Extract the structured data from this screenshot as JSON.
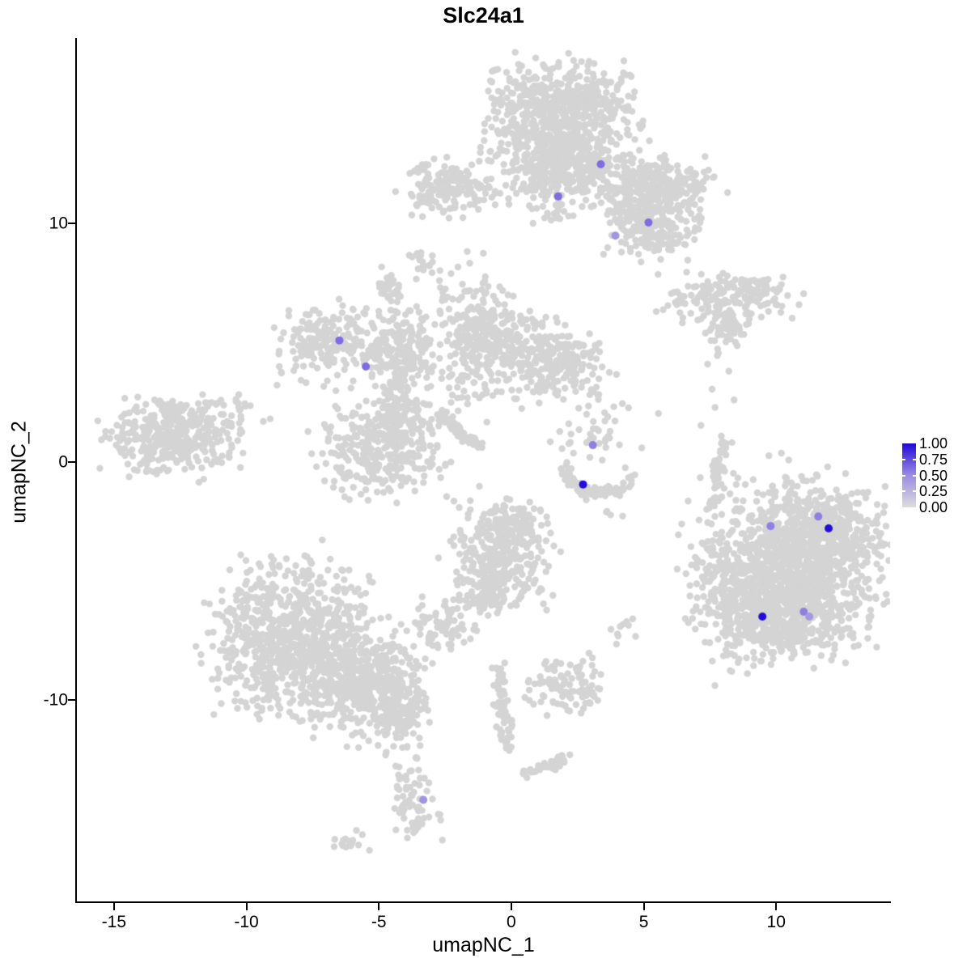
{
  "title": "Slc24a1",
  "axes": {
    "x_label": "umapNC_1",
    "y_label": "umapNC_2",
    "x_ticks": [
      {
        "label": "-15",
        "value": -15
      },
      {
        "label": "-10",
        "value": -10
      },
      {
        "label": "-5",
        "value": -5
      },
      {
        "label": "0",
        "value": 0
      },
      {
        "label": "5",
        "value": 5
      },
      {
        "label": "10",
        "value": 10
      }
    ],
    "y_ticks": [
      {
        "label": "-10",
        "value": -10
      },
      {
        "label": "0",
        "value": 0
      },
      {
        "label": "10",
        "value": 10
      }
    ]
  },
  "legend": {
    "labels": [
      {
        "label": "1.00",
        "value": 1.0
      },
      {
        "label": "0.75",
        "value": 0.75
      },
      {
        "label": "0.50",
        "value": 0.5
      },
      {
        "label": "0.25",
        "value": 0.25
      },
      {
        "label": "0.00",
        "value": 0.0
      }
    ],
    "gradient_stops": [
      [
        0,
        "#DCDCDC"
      ],
      [
        0.5,
        "#9C8CE4"
      ],
      [
        1,
        "#2008D8"
      ]
    ]
  },
  "colors": {
    "base_point": "#D4D4D4",
    "axis": "#000000",
    "background": "#FFFFFF"
  },
  "chart_data": {
    "type": "scatter",
    "title": "Slc24a1",
    "xlabel": "umapNC_1",
    "ylabel": "umapNC_2",
    "xlim": [
      -16.4,
      14.3
    ],
    "ylim": [
      -18.5,
      17.8
    ],
    "grid": false,
    "legend_position": "right",
    "colorbar": {
      "min": 0.0,
      "max": 1.0,
      "tick_values": [
        0.0,
        0.25,
        0.5,
        0.75,
        1.0
      ]
    },
    "background_clusters": [
      {
        "kind": "gauss",
        "cx": 1.85,
        "cy": 14.3,
        "sx": 1.3,
        "sy": 1.15,
        "n": 750
      },
      {
        "kind": "gauss",
        "cx": 1.85,
        "cy": 12.4,
        "sx": 0.78,
        "sy": 0.7,
        "n": 230
      },
      {
        "kind": "gauss",
        "cx": 5.1,
        "cy": 11.7,
        "sx": 1.15,
        "sy": 0.55,
        "n": 230
      },
      {
        "kind": "gauss",
        "cx": 6.4,
        "cy": 11.4,
        "sx": 0.5,
        "sy": 0.42,
        "n": 60
      },
      {
        "kind": "gauss",
        "cx": 5.4,
        "cy": 9.7,
        "sx": 0.78,
        "sy": 0.58,
        "n": 150
      },
      {
        "kind": "gauss",
        "cx": 4.4,
        "cy": 10.5,
        "sx": 0.45,
        "sy": 0.5,
        "n": 45
      },
      {
        "kind": "gauss",
        "cx": 1.5,
        "cy": 10.8,
        "sx": 0.42,
        "sy": 0.55,
        "n": 35
      },
      {
        "kind": "gauss",
        "cx": -2.45,
        "cy": 11.6,
        "sx": 0.7,
        "sy": 0.55,
        "n": 150
      },
      {
        "kind": "gauss",
        "cx": -0.7,
        "cy": 11.3,
        "sx": 0.65,
        "sy": 0.25,
        "n": 30
      },
      {
        "kind": "gauss",
        "cx": 8.0,
        "cy": 6.9,
        "sx": 1.25,
        "sy": 0.48,
        "n": 160
      },
      {
        "kind": "gauss",
        "cx": 8.1,
        "cy": 5.6,
        "sx": 0.45,
        "sy": 0.35,
        "n": 45
      },
      {
        "kind": "gauss",
        "cx": 9.3,
        "cy": 7.3,
        "sx": 0.6,
        "sy": 0.25,
        "n": 22
      },
      {
        "kind": "gauss",
        "cx": 7.75,
        "cy": 4.4,
        "sx": 0.15,
        "sy": 0.4,
        "n": 4
      },
      {
        "kind": "gauss",
        "cx": -6.7,
        "cy": 5.1,
        "sx": 1.0,
        "sy": 0.8,
        "n": 210
      },
      {
        "kind": "gauss",
        "cx": -4.9,
        "cy": 4.4,
        "sx": 0.6,
        "sy": 0.35,
        "n": 45
      },
      {
        "kind": "gauss",
        "cx": -3.9,
        "cy": 4.6,
        "sx": 0.42,
        "sy": 0.95,
        "n": 130
      },
      {
        "kind": "gauss",
        "cx": -4.9,
        "cy": 0.5,
        "sx": 1.0,
        "sy": 0.9,
        "n": 310
      },
      {
        "kind": "gauss",
        "cx": -4.3,
        "cy": 2.3,
        "sx": 0.38,
        "sy": 0.7,
        "n": 80
      },
      {
        "kind": "gauss",
        "cx": -1.1,
        "cy": 5.3,
        "sx": 0.85,
        "sy": 1.0,
        "n": 280
      },
      {
        "kind": "gauss",
        "cx": 1.4,
        "cy": 4.2,
        "sx": 0.95,
        "sy": 0.75,
        "n": 260
      },
      {
        "kind": "line",
        "x1": -2.75,
        "y1": 2.0,
        "x2": -1.2,
        "y2": 0.6,
        "jx": 0.1,
        "jy": 0.1,
        "n": 70
      },
      {
        "kind": "gauss",
        "cx": -2.4,
        "cy": 3.2,
        "sx": 1.1,
        "sy": 0.9,
        "n": 45
      },
      {
        "kind": "gauss",
        "cx": -1.9,
        "cy": 7.5,
        "sx": 0.5,
        "sy": 0.7,
        "n": 14
      },
      {
        "kind": "gauss",
        "cx": -4.6,
        "cy": 7.35,
        "sx": 0.28,
        "sy": 0.38,
        "n": 32
      },
      {
        "kind": "gauss",
        "cx": -3.3,
        "cy": 8.35,
        "sx": 0.3,
        "sy": 0.25,
        "n": 20
      },
      {
        "kind": "gauss",
        "cx": 3.6,
        "cy": 2.4,
        "sx": 0.8,
        "sy": 0.6,
        "n": 12
      },
      {
        "kind": "gauss",
        "cx": -12.8,
        "cy": 1.05,
        "sx": 1.1,
        "sy": 0.77,
        "n": 380
      },
      {
        "kind": "gauss",
        "cx": -10.3,
        "cy": 2.1,
        "sx": 0.55,
        "sy": 0.4,
        "n": 28
      },
      {
        "kind": "gauss",
        "cx": 3.1,
        "cy": 1.1,
        "sx": 0.7,
        "sy": 0.45,
        "n": 30
      },
      {
        "kind": "arc",
        "cx": 3.3,
        "cy": -0.25,
        "rx": 1.25,
        "ry": 1.05,
        "a0": 180,
        "a1": 360,
        "jr": 0.12,
        "n": 95
      },
      {
        "kind": "gauss",
        "cx": 3.8,
        "cy": -2.2,
        "sx": 0.25,
        "sy": 0.2,
        "n": 4
      },
      {
        "kind": "line",
        "x1": 8.0,
        "y1": 0.95,
        "x2": 7.6,
        "y2": -2.0,
        "jx": 0.12,
        "jy": 0.12,
        "n": 60
      },
      {
        "kind": "gauss",
        "cx": 7.8,
        "cy": 2.8,
        "sx": 0.3,
        "sy": 1.1,
        "n": 7
      },
      {
        "kind": "gauss",
        "cx": 10.6,
        "cy": -4.2,
        "sx": 1.6,
        "sy": 1.6,
        "n": 950
      },
      {
        "kind": "gauss",
        "cx": 9.8,
        "cy": -6.2,
        "sx": 1.2,
        "sy": 0.95,
        "n": 420
      },
      {
        "kind": "gauss",
        "cx": 11.9,
        "cy": -3.3,
        "sx": 1.0,
        "sy": 0.9,
        "n": 300
      },
      {
        "kind": "gauss",
        "cx": 8.4,
        "cy": -5.0,
        "sx": 0.8,
        "sy": 1.9,
        "n": 90
      },
      {
        "kind": "gauss",
        "cx": 10.3,
        "cy": -7.6,
        "sx": 1.1,
        "sy": 0.45,
        "n": 60
      },
      {
        "kind": "gauss",
        "cx": -0.5,
        "cy": -4.0,
        "sx": 0.85,
        "sy": 1.05,
        "n": 330
      },
      {
        "kind": "gauss",
        "cx": 0.25,
        "cy": -2.6,
        "sx": 0.5,
        "sy": 0.45,
        "n": 60
      },
      {
        "kind": "gauss",
        "cx": -1.0,
        "cy": -5.6,
        "sx": 0.55,
        "sy": 0.4,
        "n": 50
      },
      {
        "kind": "gauss",
        "cx": -8.3,
        "cy": -7.3,
        "sx": 1.37,
        "sy": 1.5,
        "n": 800
      },
      {
        "kind": "gauss",
        "cx": -5.7,
        "cy": -9.15,
        "sx": 1.1,
        "sy": 1.05,
        "n": 420
      },
      {
        "kind": "gauss",
        "cx": -4.4,
        "cy": -10.2,
        "sx": 0.6,
        "sy": 0.65,
        "n": 120
      },
      {
        "kind": "gauss",
        "cx": -4.5,
        "cy": -11.6,
        "sx": 0.7,
        "sy": 0.45,
        "n": 25
      },
      {
        "kind": "gauss",
        "cx": -2.5,
        "cy": -6.8,
        "sx": 0.55,
        "sy": 0.5,
        "n": 70
      },
      {
        "kind": "gauss",
        "cx": -1.3,
        "cy": -5.3,
        "sx": 0.4,
        "sy": 0.5,
        "n": 20
      },
      {
        "kind": "line",
        "x1": -0.5,
        "y1": -8.7,
        "x2": -0.1,
        "y2": -12.1,
        "jx": 0.15,
        "jy": 0.2,
        "n": 70
      },
      {
        "kind": "gauss",
        "cx": 2.1,
        "cy": -9.4,
        "sx": 0.65,
        "sy": 0.55,
        "n": 110
      },
      {
        "kind": "gauss",
        "cx": 4.1,
        "cy": -7.2,
        "sx": 0.3,
        "sy": 0.3,
        "n": 10
      },
      {
        "kind": "line",
        "x1": 0.35,
        "y1": -13.3,
        "x2": 2.05,
        "y2": -12.4,
        "jx": 0.12,
        "jy": 0.12,
        "n": 45
      },
      {
        "kind": "gauss",
        "cx": -3.6,
        "cy": -14.3,
        "sx": 0.38,
        "sy": 0.85,
        "n": 70
      },
      {
        "kind": "gauss",
        "cx": -6.2,
        "cy": -16.0,
        "sx": 0.4,
        "sy": 0.2,
        "n": 16
      }
    ],
    "highlighted_points": [
      {
        "x": 3.38,
        "y": 12.5,
        "value": 0.62
      },
      {
        "x": 1.77,
        "y": 11.15,
        "value": 0.62
      },
      {
        "x": 5.18,
        "y": 10.05,
        "value": 0.62
      },
      {
        "x": 3.93,
        "y": 9.5,
        "value": 0.45
      },
      {
        "x": -6.49,
        "y": 5.1,
        "value": 0.62
      },
      {
        "x": -5.49,
        "y": 4.0,
        "value": 0.62
      },
      {
        "x": 3.08,
        "y": 0.7,
        "value": 0.55
      },
      {
        "x": 2.71,
        "y": -0.95,
        "value": 0.98
      },
      {
        "x": 11.59,
        "y": -2.3,
        "value": 0.55
      },
      {
        "x": 11.98,
        "y": -2.8,
        "value": 0.98
      },
      {
        "x": 9.79,
        "y": -2.7,
        "value": 0.55
      },
      {
        "x": 9.48,
        "y": -6.5,
        "value": 0.98
      },
      {
        "x": 11.04,
        "y": -6.3,
        "value": 0.55
      },
      {
        "x": 11.25,
        "y": -6.5,
        "value": 0.42
      },
      {
        "x": -3.32,
        "y": -14.2,
        "value": 0.45
      }
    ]
  }
}
